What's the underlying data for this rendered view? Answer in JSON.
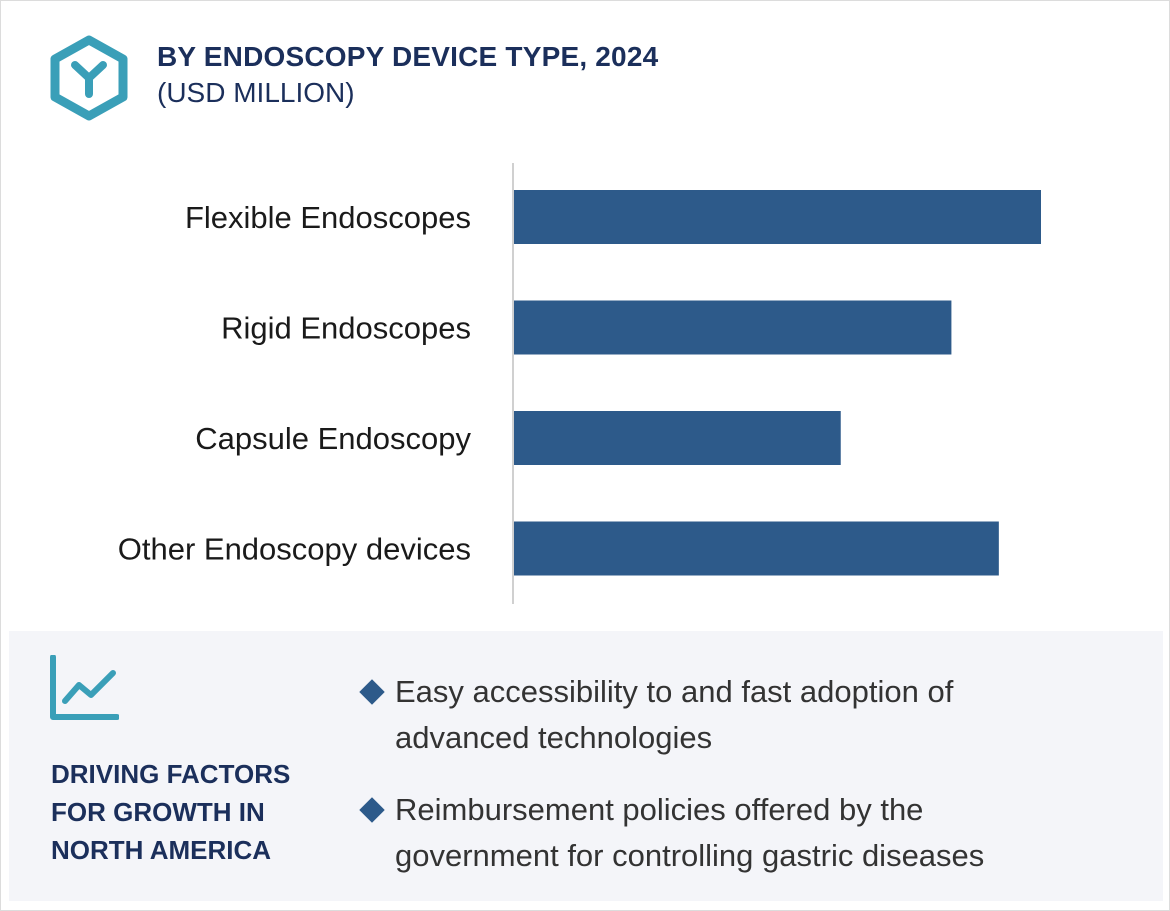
{
  "header": {
    "title": "BY ENDOSCOPY DEVICE TYPE, 2024",
    "subtitle": "(USD MILLION)",
    "logo_icon": "hexagon-y-icon",
    "logo_color": "#3a9fb8"
  },
  "chart_data": {
    "type": "bar",
    "orientation": "horizontal",
    "title": "BY ENDOSCOPY DEVICE TYPE, 2024",
    "subtitle": "(USD MILLION)",
    "categories": [
      "Flexible Endoscopes",
      "Rigid Endoscopes",
      "Capsule Endoscopy",
      "Other Endoscopy devices"
    ],
    "values": [
      100,
      83,
      62,
      92
    ],
    "xlim": [
      0,
      100
    ],
    "xlabel": "",
    "ylabel": "",
    "grid": false,
    "legend": "none",
    "bar_color": "#2d5a8a",
    "value_axis_visible": false
  },
  "drivers": {
    "icon": "line-chart-icon",
    "title_lines": [
      "DRIVING FACTORS",
      "FOR GROWTH IN",
      "NORTH AMERICA"
    ],
    "bullets": [
      {
        "lines": [
          "Easy accessibility to and fast adoption of",
          "advanced technologies"
        ]
      },
      {
        "lines": [
          "Reimbursement policies offered by the",
          "government for controlling gastric diseases"
        ]
      }
    ]
  }
}
